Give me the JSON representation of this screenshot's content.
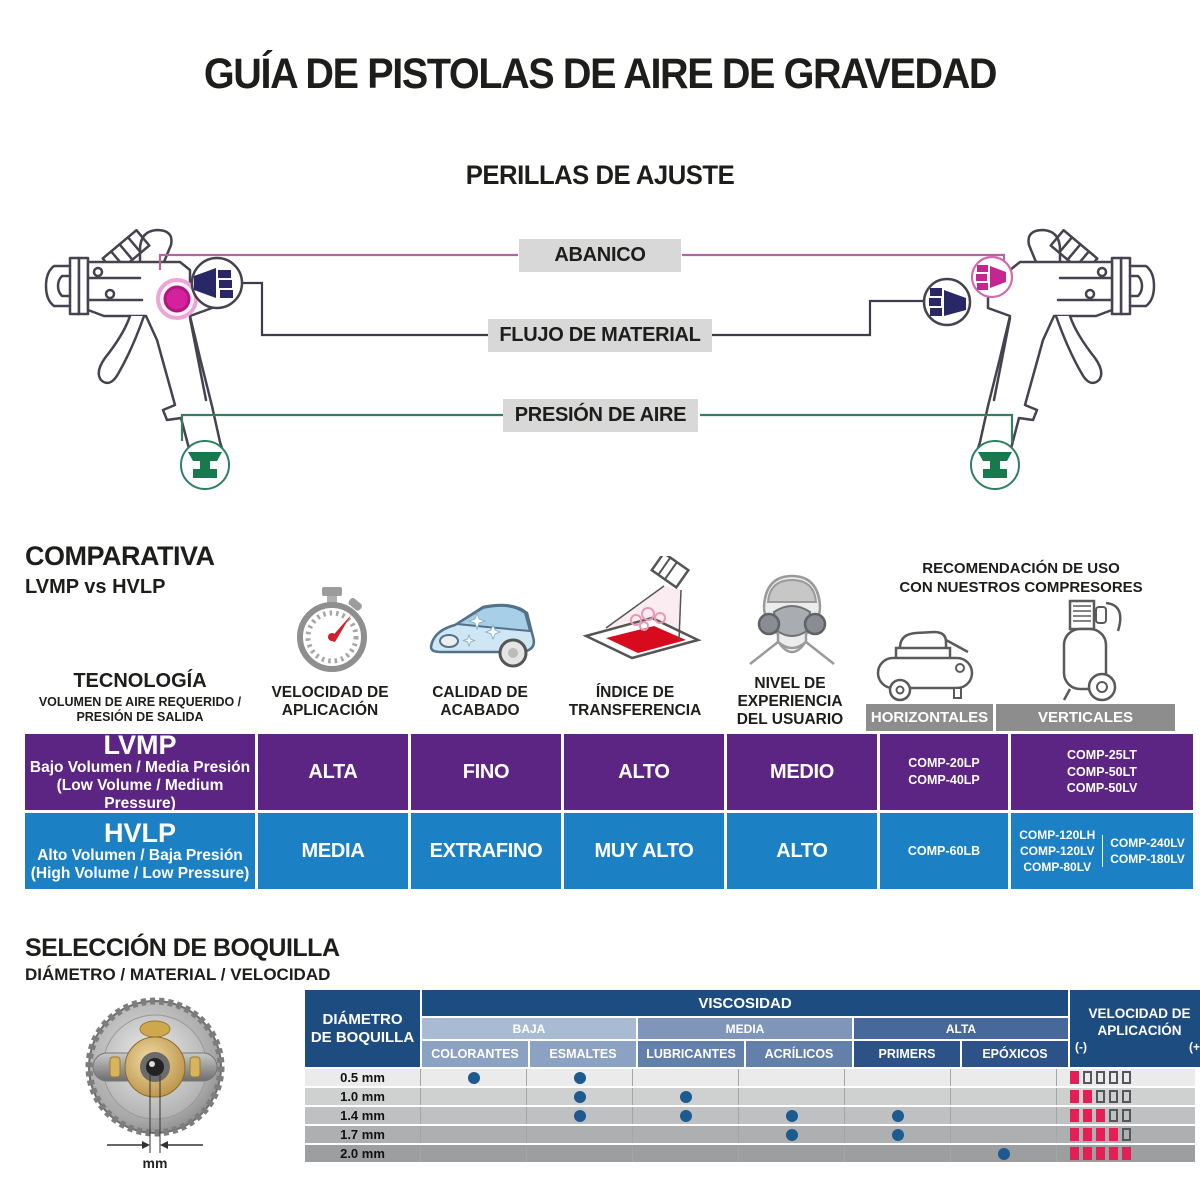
{
  "title": "GUÍA DE PISTOLAS DE AIRE DE GRAVEDAD",
  "knobs": {
    "heading": "PERILLAS DE AJUSTE",
    "labels": [
      {
        "text": "ABANICO",
        "line_color": "#b2669c"
      },
      {
        "text": "FLUJO DE MATERIAL",
        "line_color": "#3f3b4d"
      },
      {
        "text": "PRESIÓN DE AIRE",
        "line_color": "#357f5f"
      }
    ]
  },
  "comparison": {
    "heading": "COMPARATIVA",
    "subheading": "LVMP vs HVLP",
    "recommendation": "RECOMENDACIÓN DE USO\nCON NUESTROS COMPRESORES",
    "columns": {
      "tecnologia": "TECNOLOGÍA",
      "tecnologia_sub": "VOLUMEN DE AIRE REQUERIDO /\nPRESIÓN DE SALIDA",
      "velocidad": "VELOCIDAD DE\nAPLICACIÓN",
      "calidad": "CALIDAD DE\nACABADO",
      "indice": "ÍNDICE DE\nTRANSFERENCIA",
      "nivel": "NIVEL DE\nEXPERIENCIA\nDEL USUARIO",
      "horizontales": "HORIZONTALES",
      "verticales": "VERTICALES"
    },
    "icons": {
      "velocidad": "stopwatch-icon",
      "calidad": "car-icon",
      "indice": "spray-transfer-icon",
      "nivel": "respirator-icon",
      "horizontales": "compressor-horizontal-icon",
      "verticales": "compressor-vertical-icon"
    },
    "rows": [
      {
        "name": "LVMP",
        "desc": "Bajo Volumen / Media Presión",
        "desc_en": "(Low Volume / Medium Pressure)",
        "color": "#5c2483",
        "velocidad": "ALTA",
        "calidad": "FINO",
        "indice": "ALTO",
        "nivel": "MEDIO",
        "horizontales": "COMP-20LP\nCOMP-40LP",
        "verticales": [
          "COMP-25LT\nCOMP-50LT\nCOMP-50LV"
        ]
      },
      {
        "name": "HVLP",
        "desc": "Alto Volumen / Baja Presión",
        "desc_en": "(High Volume / Low Pressure)",
        "color": "#1b80c4",
        "velocidad": "MEDIA",
        "calidad": "EXTRAFINO",
        "indice": "MUY ALTO",
        "nivel": "ALTO",
        "horizontales": "COMP-60LB",
        "verticales": [
          "COMP-120LH\nCOMP-120LV\nCOMP-80LV",
          "COMP-240LV\nCOMP-180LV"
        ]
      }
    ]
  },
  "nozzle": {
    "heading": "SELECCIÓN DE BOQUILLA",
    "subheading": "DIÁMETRO / MATERIAL / VELOCIDAD",
    "mm_label": "mm",
    "table": {
      "diameter_header": "DIÁMETRO\nDE BOQUILLA",
      "viscosity_header": "VISCOSIDAD",
      "velocity_header": "VELOCIDAD DE\nAPLICACIÓN",
      "velocity_min": "(-)",
      "velocity_max": "(+)",
      "velocity_total": 5,
      "groups": [
        {
          "label": "BAJA",
          "band_color": "#a9bbd3",
          "cell_color": "#8ba2c3",
          "materials": [
            "COLORANTES",
            "ESMALTES"
          ]
        },
        {
          "label": "MEDIA",
          "band_color": "#8095ba",
          "cell_color": "#6380aa",
          "materials": [
            "LUBRICANTES",
            "ACRÍLICOS"
          ]
        },
        {
          "label": "ALTA",
          "band_color": "#47689a",
          "cell_color": "#2d5288",
          "materials": [
            "PRIMERS",
            "EPÓXICOS"
          ]
        }
      ],
      "rows": [
        {
          "diameter": "0.5 mm",
          "dots": [
            "COLORANTES",
            "ESMALTES"
          ],
          "velocity": 1,
          "bg": "#eaebea"
        },
        {
          "diameter": "1.0 mm",
          "dots": [
            "ESMALTES",
            "LUBRICANTES"
          ],
          "velocity": 2,
          "bg": "#cfd0d0"
        },
        {
          "diameter": "1.4 mm",
          "dots": [
            "ESMALTES",
            "LUBRICANTES",
            "ACRÍLICOS",
            "PRIMERS"
          ],
          "velocity": 3,
          "bg": "#bfc0c1"
        },
        {
          "diameter": "1.7 mm",
          "dots": [
            "ACRÍLICOS",
            "PRIMERS"
          ],
          "velocity": 4,
          "bg": "#aeafb0"
        },
        {
          "diameter": "2.0 mm",
          "dots": [
            "EPÓXICOS"
          ],
          "velocity": 5,
          "bg": "#9d9ea0"
        }
      ]
    }
  },
  "colors": {
    "navy": "#1d4d80",
    "purple": "#5c2483",
    "blue": "#1b80c4",
    "crimson": "#e41f56",
    "dot_blue": "#1c5a90",
    "label_box_gray": "#d8d8d8",
    "header_gray": "#8d8d8d",
    "knob_magenta": "#d4219c",
    "knob_navy": "#2a2766",
    "knob_green": "#177a4e"
  }
}
